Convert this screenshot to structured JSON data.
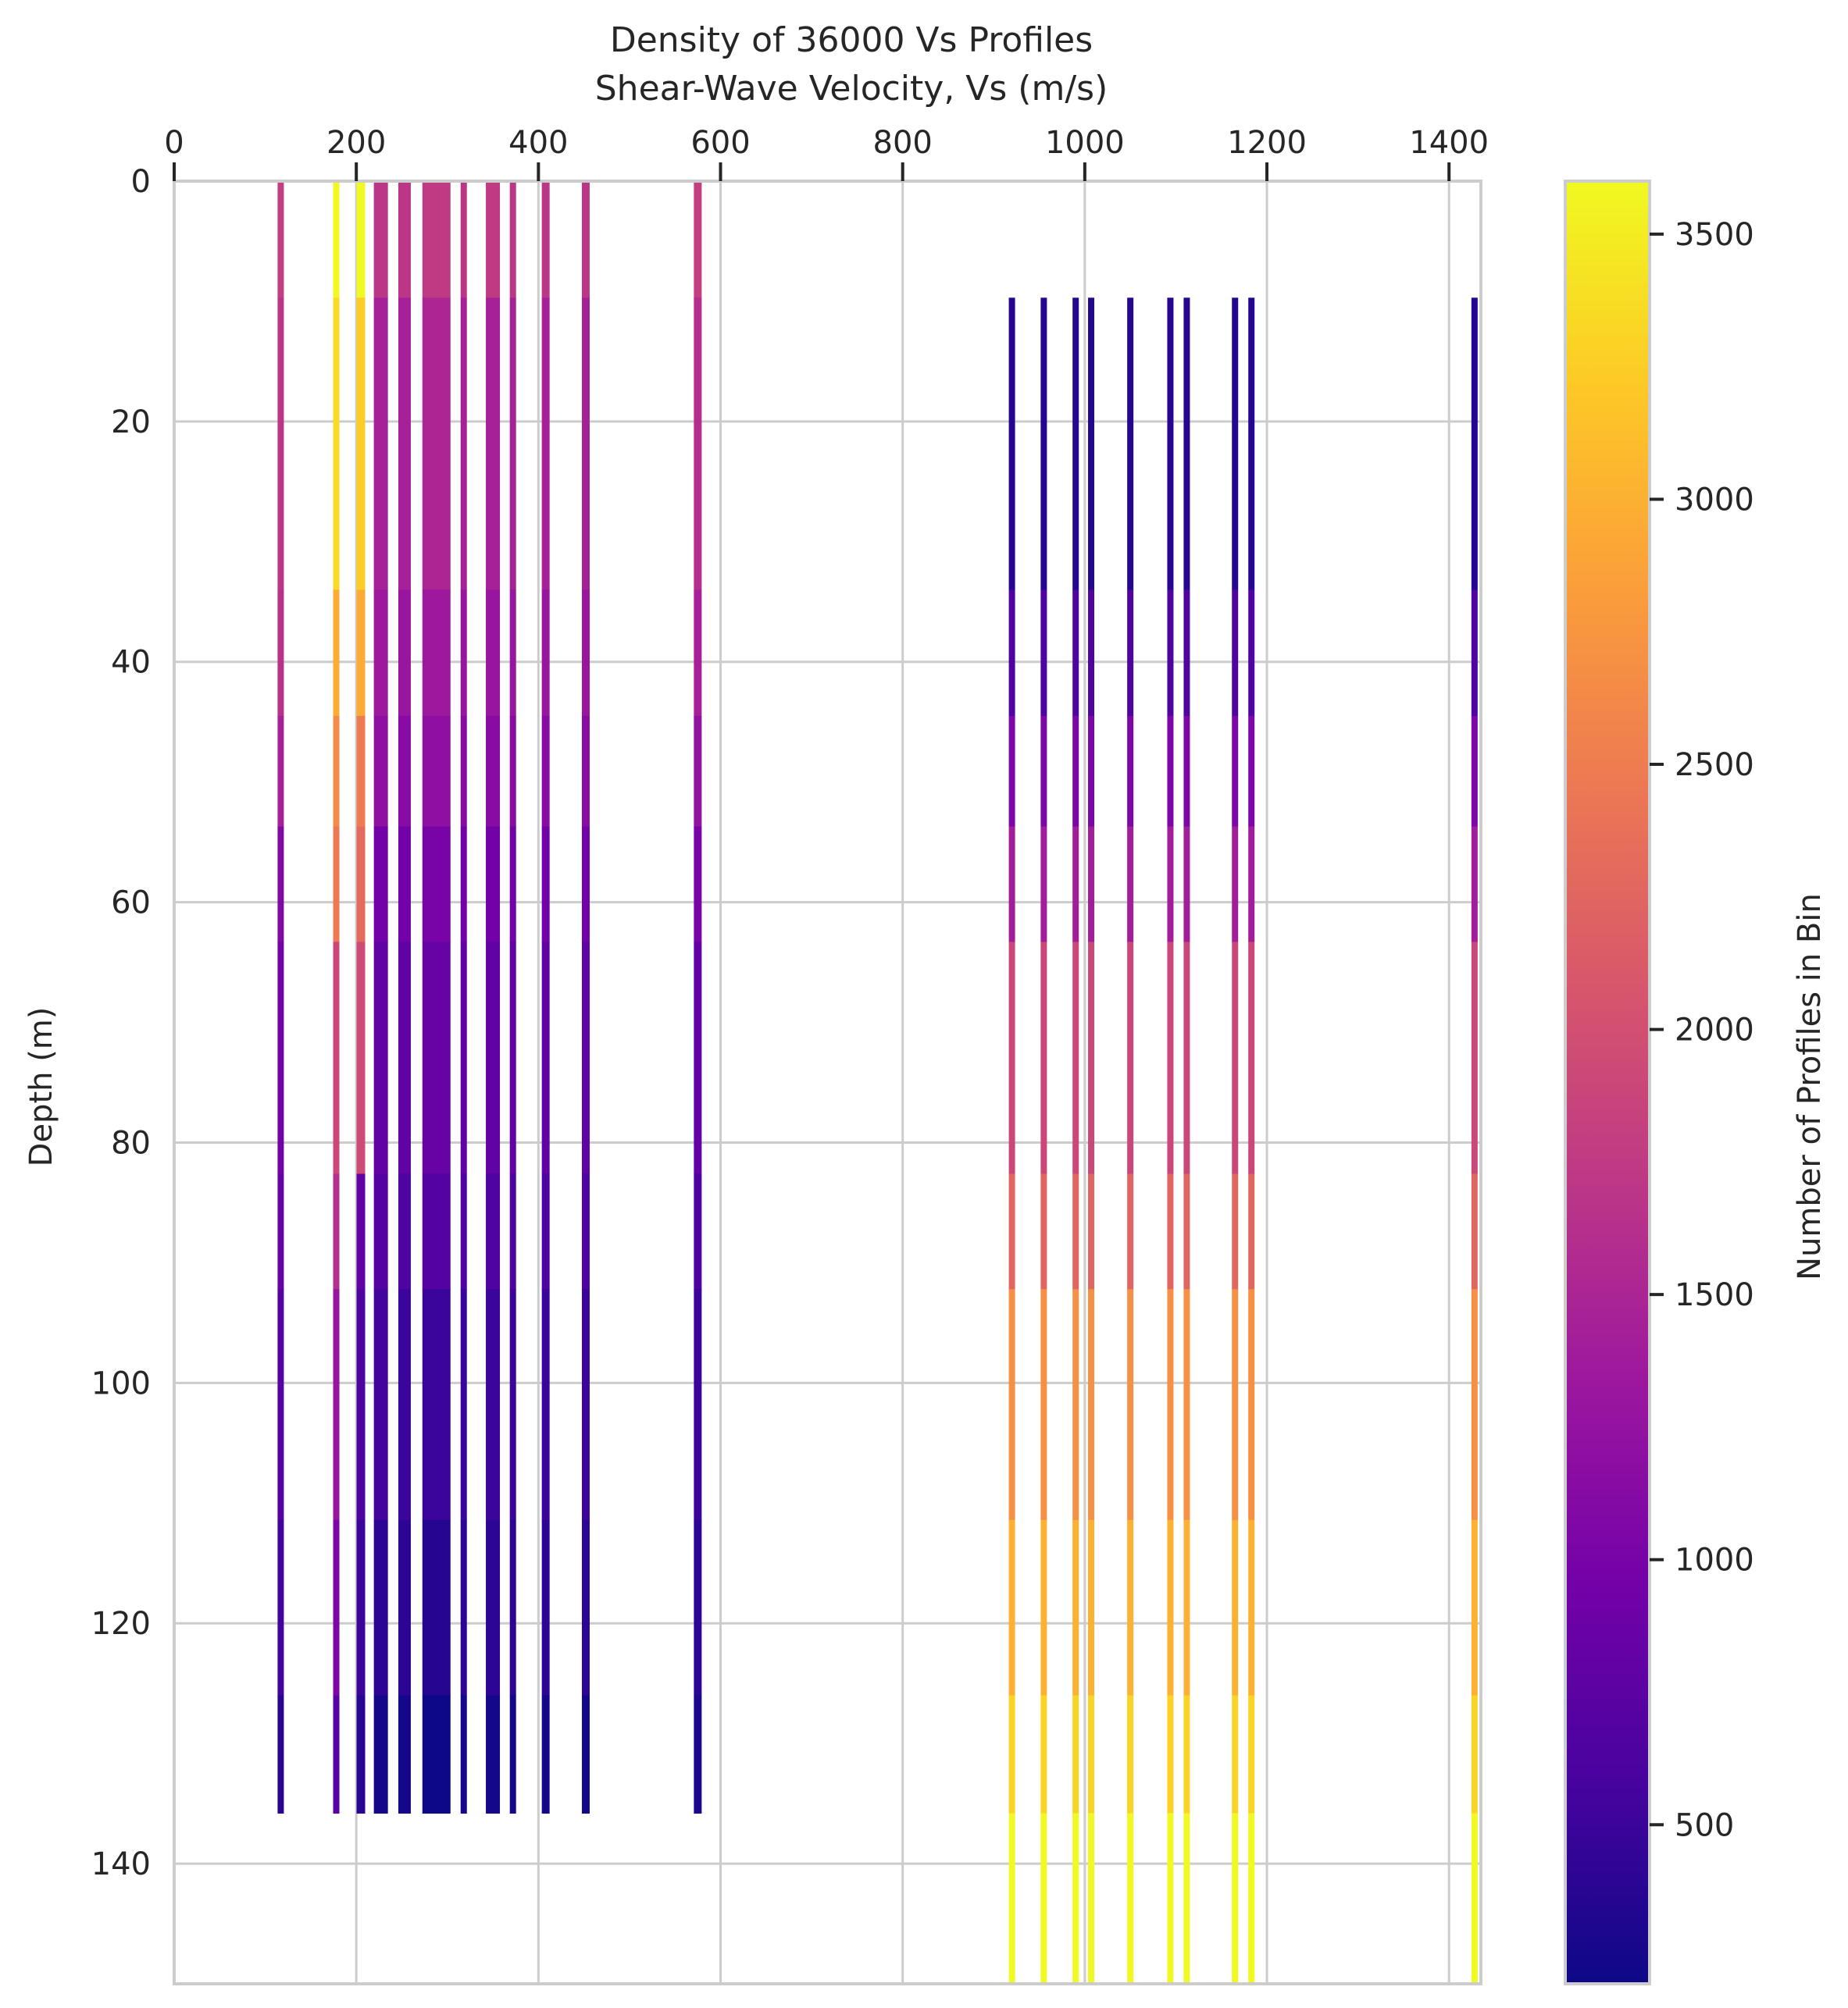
{
  "chart_data": {
    "type": "heatmap",
    "title": "Density of 36000 Vs Profiles",
    "xlabel": "Shear-Wave Velocity, Vs (m/s)",
    "ylabel": "Depth (m)",
    "colorbar_label": "Number of Profiles in Bin",
    "colormap": "plasma",
    "xlim": [
      0,
      1435
    ],
    "ylim": [
      150,
      0
    ],
    "xticks": [
      0,
      200,
      400,
      600,
      800,
      1000,
      1200,
      1400
    ],
    "yticks": [
      0,
      20,
      40,
      60,
      80,
      100,
      120,
      140
    ],
    "colorbar_range": [
      200,
      3600
    ],
    "colorbar_ticks": [
      500,
      1000,
      1500,
      2000,
      2500,
      3000,
      3500
    ],
    "grid": true,
    "depth_bins": [
      0,
      9.7,
      34,
      44.5,
      53.7,
      63.3,
      82.6,
      92.2,
      111.4,
      126,
      135.8,
      150
    ],
    "columns": [
      {
        "vs": 117,
        "width": 8,
        "values": [
          1800,
          1700,
          1650,
          1450,
          1100,
          950,
          850,
          700,
          550,
          380,
          null
        ]
      },
      {
        "vs": 178,
        "width": 8,
        "values": [
          3600,
          3350,
          2950,
          2650,
          2450,
          1900,
          1600,
          1300,
          1050,
          750,
          null
        ]
      },
      {
        "vs": 205,
        "width": 11,
        "values": [
          3600,
          3250,
          2950,
          2500,
          2300,
          1950,
          800,
          650,
          500,
          380,
          null
        ]
      },
      {
        "vs": 227,
        "width": 18,
        "values": [
          1700,
          1450,
          1350,
          1200,
          950,
          800,
          700,
          550,
          400,
          250,
          null
        ]
      },
      {
        "vs": 253,
        "width": 16,
        "values": [
          1700,
          1450,
          1300,
          1150,
          950,
          800,
          650,
          500,
          400,
          250,
          null
        ]
      },
      {
        "vs": 288,
        "width": 36,
        "values": [
          1750,
          1500,
          1350,
          1200,
          1000,
          850,
          700,
          500,
          350,
          200,
          null
        ]
      },
      {
        "vs": 318,
        "width": 8,
        "values": [
          1700,
          1450,
          1300,
          1150,
          950,
          800,
          650,
          500,
          400,
          250,
          null
        ]
      },
      {
        "vs": 350,
        "width": 18,
        "values": [
          1750,
          1450,
          1300,
          1150,
          950,
          800,
          650,
          500,
          400,
          250,
          null
        ]
      },
      {
        "vs": 372,
        "width": 8,
        "values": [
          1700,
          1450,
          1300,
          1150,
          950,
          800,
          650,
          500,
          400,
          250,
          null
        ]
      },
      {
        "vs": 408,
        "width": 10,
        "values": [
          1700,
          1450,
          1300,
          1150,
          950,
          800,
          650,
          500,
          400,
          250,
          null
        ]
      },
      {
        "vs": 452,
        "width": 10,
        "values": [
          1700,
          1450,
          1300,
          1150,
          950,
          800,
          650,
          500,
          400,
          250,
          null
        ]
      },
      {
        "vs": 575,
        "width": 10,
        "values": [
          1800,
          1600,
          1450,
          1250,
          1000,
          800,
          650,
          500,
          400,
          300,
          null
        ]
      },
      {
        "vs": 920,
        "width": 8,
        "values": [
          null,
          350,
          650,
          1050,
          1400,
          1900,
          2250,
          2700,
          3000,
          3300,
          3600
        ]
      },
      {
        "vs": 955,
        "width": 8,
        "values": [
          null,
          350,
          650,
          1050,
          1400,
          1900,
          2250,
          2700,
          3000,
          3300,
          3600
        ]
      },
      {
        "vs": 990,
        "width": 8,
        "values": [
          null,
          350,
          650,
          1050,
          1400,
          1900,
          2250,
          2700,
          3000,
          3300,
          3600
        ]
      },
      {
        "vs": 1007,
        "width": 8,
        "values": [
          null,
          350,
          650,
          1050,
          1400,
          1900,
          2250,
          2700,
          3000,
          3300,
          3600
        ]
      },
      {
        "vs": 1050,
        "width": 8,
        "values": [
          null,
          350,
          650,
          1050,
          1400,
          1900,
          2250,
          2700,
          3000,
          3300,
          3600
        ]
      },
      {
        "vs": 1094,
        "width": 8,
        "values": [
          null,
          350,
          650,
          1050,
          1400,
          1900,
          2250,
          2700,
          3000,
          3300,
          3600
        ]
      },
      {
        "vs": 1112,
        "width": 8,
        "values": [
          null,
          350,
          650,
          1050,
          1400,
          1900,
          2250,
          2700,
          3000,
          3300,
          3600
        ]
      },
      {
        "vs": 1165,
        "width": 8,
        "values": [
          null,
          350,
          650,
          1050,
          1400,
          1900,
          2250,
          2700,
          3000,
          3300,
          3600
        ]
      },
      {
        "vs": 1183,
        "width": 8,
        "values": [
          null,
          350,
          650,
          1050,
          1400,
          1900,
          2250,
          2700,
          3000,
          3300,
          3600
        ]
      },
      {
        "vs": 1428,
        "width": 8,
        "values": [
          null,
          350,
          650,
          1050,
          1400,
          1900,
          2250,
          2700,
          3000,
          3300,
          3600
        ]
      }
    ]
  }
}
